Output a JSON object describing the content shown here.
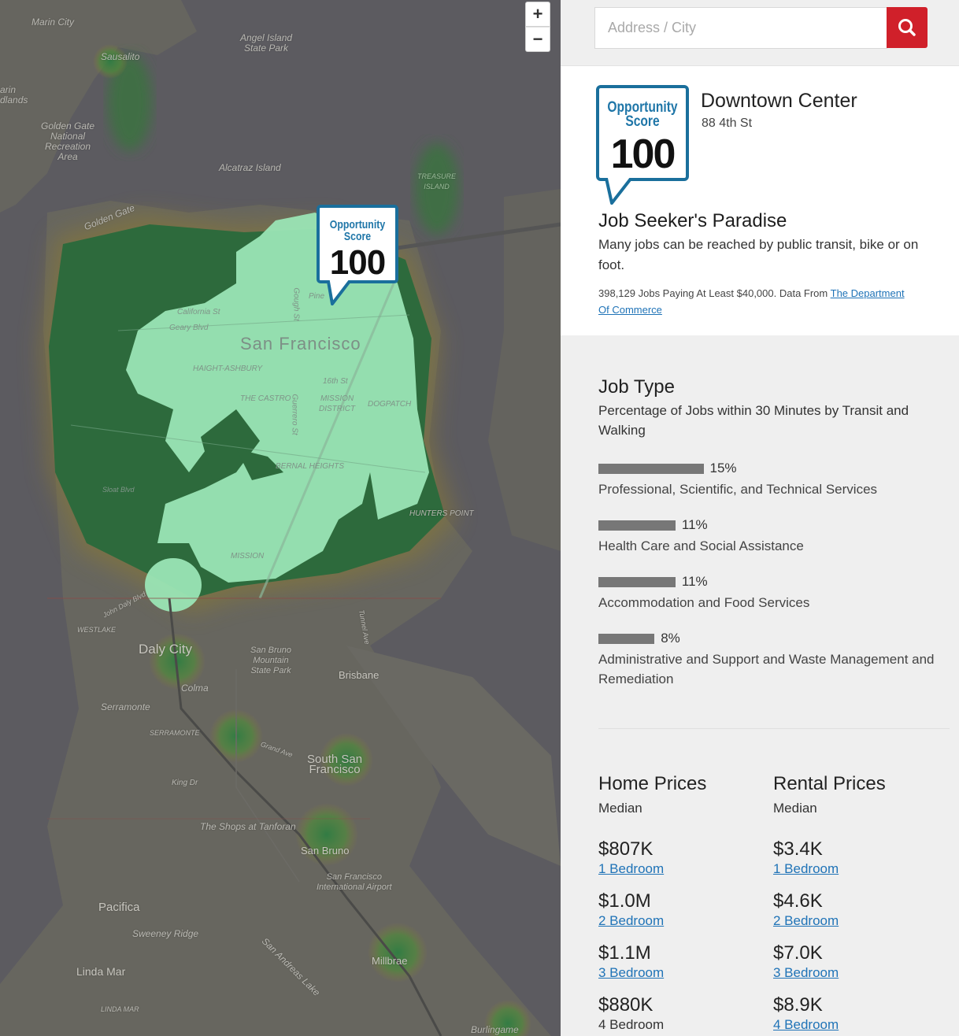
{
  "map": {
    "zoom_in": "+",
    "zoom_out": "−",
    "badge": {
      "line1": "Opportunity",
      "line2": "Score",
      "value": "100"
    },
    "labels": [
      "Marin City",
      "Sausalito",
      "Angel Island\nState Park",
      "arin\ndlands",
      "Golden Gate\nNational\nRecreation\nArea",
      "Alcatraz Island",
      "Golden Gate",
      "San Francisco",
      "Geary Blvd",
      "California St",
      "HAIGHT-ASHBURY",
      "THE CASTRO",
      "MISSION\nDISTRICT",
      "16th St",
      "DOGPATCH",
      "BERNAL HEIGHTS",
      "Gough St",
      "Guerrero St",
      "Pine",
      "HUNTERS POINT",
      "MISSION",
      "Daly City",
      "Colma",
      "San Bruno\nMountain\nState Park",
      "Brisbane",
      "Serramonte",
      "SERRAMONTE",
      "South San\nFrancisco",
      "King Dr",
      "The Shops at Tanforan",
      "San Bruno",
      "San Francisco\nInternational Airport",
      "Pacifica",
      "Sweeney Ridge",
      "Linda Mar",
      "LINDA MAR",
      "Millbrae",
      "San Andreas Lake",
      "Burlingame",
      "John Daly Blvd",
      "WESTLAKE",
      "Grand Ave",
      "Sloat Blvd",
      "Tunnel Ave",
      "TREASURE\nISLAND"
    ]
  },
  "search": {
    "placeholder": "Address / City"
  },
  "location": {
    "name": "Downtown Center",
    "address": "88 4th St"
  },
  "score": {
    "line1": "Opportunity",
    "line2": "Score",
    "value": "100"
  },
  "summary": {
    "headline": "Job Seeker's Paradise",
    "description": "Many jobs can be reached by public transit, bike or on foot.",
    "source_text": "398,129 Jobs Paying At Least $40,000. Data From ",
    "source_link": "The Department Of Commerce"
  },
  "job_type": {
    "title": "Job Type",
    "subtitle": "Percentage of Jobs within 30 Minutes by Transit and Walking",
    "rows": [
      {
        "pct": "15%",
        "value": 15,
        "label": "Professional, Scientific, and Technical Services"
      },
      {
        "pct": "11%",
        "value": 11,
        "label": "Health Care and Social Assistance"
      },
      {
        "pct": "11%",
        "value": 11,
        "label": "Accommodation and Food Services"
      },
      {
        "pct": "8%",
        "value": 8,
        "label": "Administrative and Support and Waste Management and Remediation"
      }
    ]
  },
  "home": {
    "title": "Home Prices",
    "sub": "Median",
    "rows": [
      {
        "price": "$807K",
        "label": "1 Bedroom",
        "link": true
      },
      {
        "price": "$1.0M",
        "label": "2 Bedroom",
        "link": true
      },
      {
        "price": "$1.1M",
        "label": "3 Bedroom",
        "link": true
      },
      {
        "price": "$880K",
        "label": "4 Bedroom",
        "link": false
      }
    ]
  },
  "rental": {
    "title": "Rental Prices",
    "sub": "Median",
    "rows": [
      {
        "price": "$3.4K",
        "label": "1 Bedroom",
        "link": true
      },
      {
        "price": "$4.6K",
        "label": "2 Bedroom",
        "link": true
      },
      {
        "price": "$7.0K",
        "label": "3 Bedroom",
        "link": true
      },
      {
        "price": "$8.9K",
        "label": "4 Bedroom",
        "link": true
      }
    ]
  },
  "colors": {
    "accent": "#d0202a",
    "badge": "#1a6f9c",
    "link": "#1f73b7",
    "heat_core": "#9be7b7",
    "heat_mid": "#3f7a45"
  }
}
